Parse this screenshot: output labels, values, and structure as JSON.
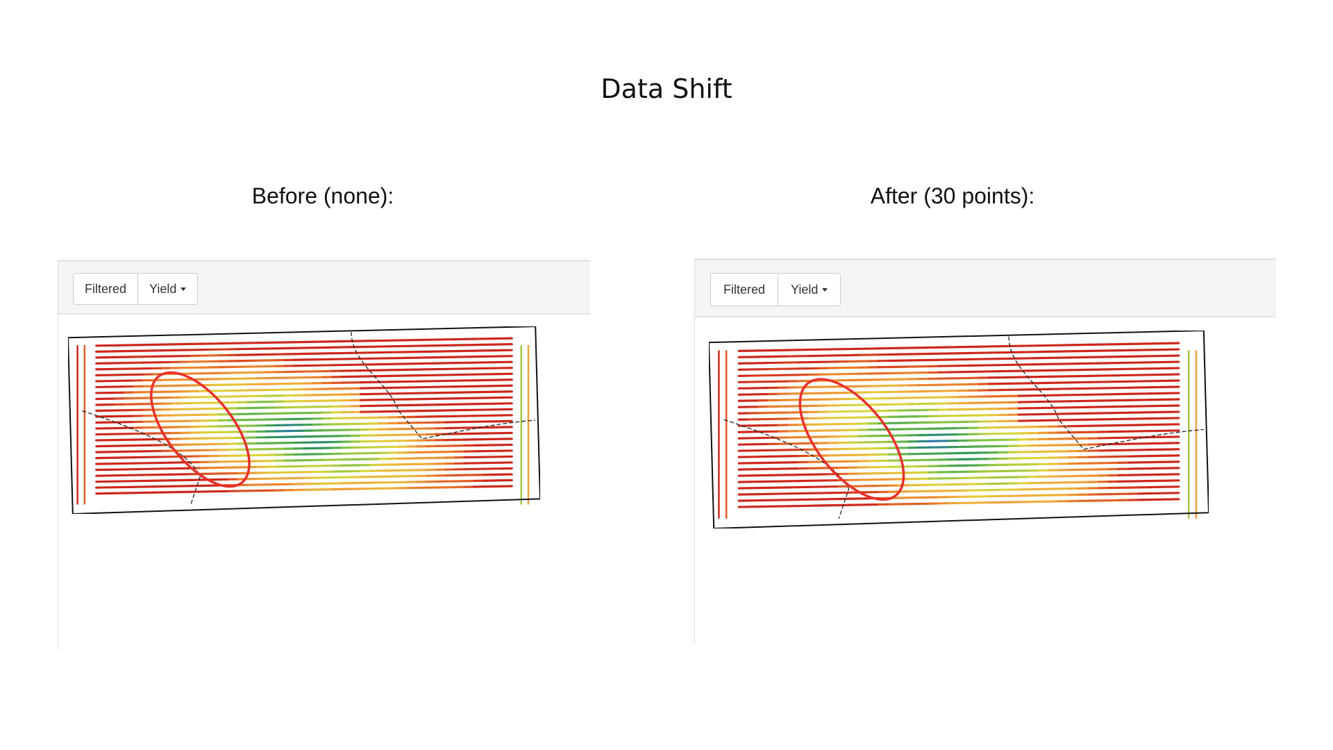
{
  "title": "Data Shift",
  "panels": [
    {
      "heading": "Before (none):",
      "buttons": {
        "filtered": "Filtered",
        "yield": "Yield"
      }
    },
    {
      "heading": "After (30 points):",
      "buttons": {
        "filtered": "Filtered",
        "yield": "Yield"
      }
    }
  ],
  "colors": {
    "highlight": "#e8302a",
    "boundary": "#111111",
    "header_bg": "#f5f5f5"
  },
  "icons": {
    "dropdown": "caret-down-icon"
  }
}
